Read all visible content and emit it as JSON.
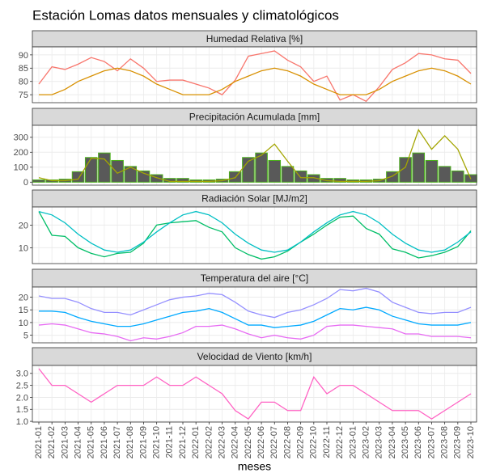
{
  "title": "Estación Lomas datos mensuales y climatológicos",
  "chart_data": [
    {
      "type": "line",
      "title": "Humedad Relativa [%]",
      "ylim": [
        72,
        93
      ],
      "yticks": [
        75,
        80,
        85,
        90
      ],
      "grid": true,
      "series": [
        {
          "type": "line",
          "color": "#F8766D",
          "values": [
            79,
            85.5,
            84.5,
            86.5,
            89,
            87.5,
            84,
            88.5,
            85,
            80,
            80.5,
            80.5,
            79,
            77.5,
            75,
            80.5,
            89.5,
            90.5,
            91.5,
            88,
            85.5,
            80,
            82,
            73,
            75,
            72.5,
            78,
            84.5,
            87,
            90.5,
            90,
            88.5,
            88,
            83
          ]
        },
        {
          "type": "line",
          "color": "#D89000",
          "values": [
            75,
            75,
            77,
            80,
            82,
            84,
            85,
            84,
            82,
            79,
            77,
            75,
            75,
            75,
            77,
            80,
            82,
            84,
            85,
            84,
            82,
            79,
            77,
            75,
            75,
            75,
            77,
            80,
            82,
            84,
            85,
            84,
            82,
            79
          ]
        }
      ]
    },
    {
      "type": "combo",
      "title": "Precipitación Acumulada [mm]",
      "ylim": [
        -20,
        380
      ],
      "yticks": [
        0,
        100,
        200,
        300
      ],
      "grid": true,
      "series": [
        {
          "type": "bar",
          "color": "#595959",
          "border": "#4CB01C",
          "values": [
            15,
            15,
            20,
            70,
            165,
            195,
            145,
            105,
            75,
            50,
            25,
            25,
            15,
            15,
            20,
            70,
            165,
            195,
            145,
            105,
            75,
            50,
            25,
            25,
            15,
            15,
            20,
            70,
            165,
            195,
            145,
            105,
            75,
            50
          ]
        },
        {
          "type": "line",
          "color": "#A3A500",
          "values": [
            30,
            10,
            10,
            20,
            160,
            155,
            60,
            100,
            60,
            30,
            5,
            5,
            5,
            5,
            10,
            30,
            140,
            180,
            255,
            140,
            30,
            30,
            10,
            5,
            5,
            5,
            10,
            40,
            100,
            350,
            220,
            310,
            220,
            20
          ]
        }
      ]
    },
    {
      "type": "line",
      "title": "Radiación Solar [MJ/m2]",
      "ylim": [
        3,
        28
      ],
      "yticks": [
        10,
        20
      ],
      "grid": true,
      "series": [
        {
          "type": "line",
          "color": "#00BE67",
          "values": [
            26,
            15.5,
            15,
            10,
            7.5,
            6,
            7.5,
            8,
            12,
            20,
            21,
            21.5,
            22,
            19,
            17,
            10,
            7,
            5,
            6,
            8.5,
            12.5,
            16,
            20,
            23.5,
            24,
            18.5,
            16,
            9.5,
            8,
            5.5,
            6.5,
            8,
            10.5,
            17.5
          ]
        },
        {
          "type": "line",
          "color": "#00BFC4",
          "values": [
            26,
            24.5,
            21,
            16,
            12,
            9,
            8,
            9,
            12.5,
            17,
            21,
            24.5,
            26,
            24.5,
            21,
            16,
            12,
            9,
            8,
            9,
            12.5,
            17,
            21,
            24.5,
            26,
            24.5,
            21,
            16,
            12,
            9,
            8,
            9,
            12.5,
            17
          ]
        }
      ]
    },
    {
      "type": "line",
      "title": "Temperatura del aire [°C]",
      "ylim": [
        2,
        24
      ],
      "yticks": [
        5,
        10,
        15,
        20
      ],
      "grid": true,
      "series": [
        {
          "type": "line",
          "color": "#9590FF",
          "values": [
            20.5,
            19.5,
            19.5,
            18,
            15.5,
            14,
            14,
            13,
            15,
            17,
            19,
            20,
            20.5,
            21.5,
            21,
            18,
            14.5,
            13,
            12,
            14,
            15,
            17,
            19.5,
            23,
            22.5,
            23.5,
            22,
            18,
            16,
            14,
            13.5,
            14,
            14,
            16
          ]
        },
        {
          "type": "line",
          "color": "#00A9FF",
          "values": [
            14.5,
            14.5,
            14,
            12,
            10.5,
            9.5,
            8.5,
            8.5,
            9.5,
            11,
            12.5,
            14,
            14.5,
            15.5,
            14,
            11.5,
            9,
            9,
            8,
            8.5,
            9,
            10.5,
            13,
            15.5,
            15,
            16,
            15,
            12.5,
            11,
            9.5,
            9,
            9,
            9,
            10
          ]
        },
        {
          "type": "line",
          "color": "#E76BF3",
          "values": [
            9,
            9.5,
            9,
            7.5,
            6,
            5.5,
            4.5,
            2.8,
            4,
            3.5,
            4.5,
            6,
            8.5,
            8.5,
            9,
            7.5,
            5.5,
            4,
            5,
            4,
            3.5,
            5,
            8.5,
            9,
            9,
            8.5,
            8,
            7.5,
            5.5,
            5.5,
            4.5,
            4.5,
            4.5,
            4
          ]
        }
      ]
    },
    {
      "type": "line",
      "title": "Velocidad de Viento [km/h]",
      "ylim": [
        0.97,
        3.33
      ],
      "yticks": [
        {
          "value": 1,
          "label": "1.0"
        },
        1.5,
        {
          "value": 2,
          "label": "2.0"
        },
        2.5,
        {
          "value": 3,
          "label": "3.0"
        }
      ],
      "grid": true,
      "xlabel": "meses",
      "categories": [
        "2021-01",
        "2021-02",
        "2021-03",
        "2021-04",
        "2021-05",
        "2021-06",
        "2021-07",
        "2021-08",
        "2021-09",
        "2021-10",
        "2021-11",
        "2021-12",
        "2022-01",
        "2022-02",
        "2022-03",
        "2022-04",
        "2022-05",
        "2022-06",
        "2022-07",
        "2022-08",
        "2022-09",
        "2022-10",
        "2022-11",
        "2022-12",
        "2023-01",
        "2023-02",
        "2023-03",
        "2023-04",
        "2023-05",
        "2023-06",
        "2023-07",
        "2023-08",
        "2023-09",
        "2023-10"
      ],
      "series": [
        {
          "type": "line",
          "color": "#FF61C3",
          "values": [
            3.2,
            2.5,
            2.5,
            2.15,
            1.8,
            2.15,
            2.5,
            2.5,
            2.5,
            2.85,
            2.5,
            2.5,
            2.85,
            2.5,
            2.15,
            1.45,
            1.1,
            1.8,
            1.8,
            1.45,
            1.45,
            2.85,
            2.15,
            2.5,
            2.5,
            2.15,
            1.8,
            1.45,
            1.45,
            1.45,
            1.1,
            1.45,
            1.8,
            2.15
          ]
        }
      ]
    }
  ]
}
